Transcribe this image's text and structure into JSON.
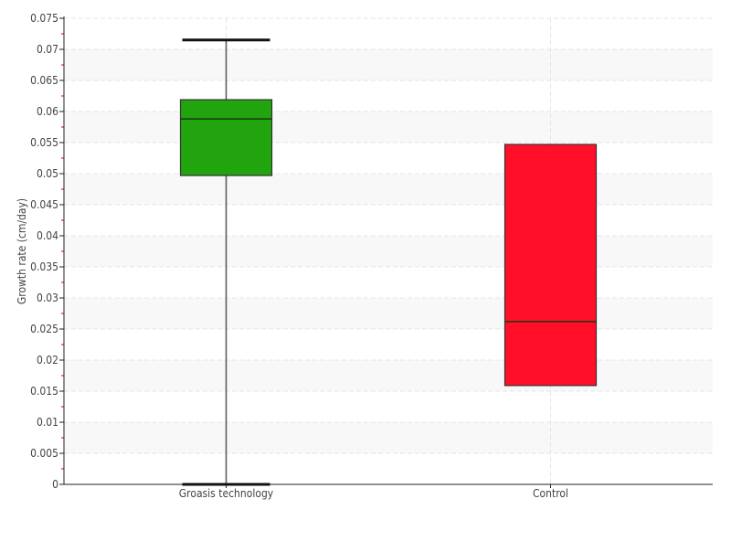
{
  "chart_data": {
    "type": "box",
    "title": "",
    "xlabel": "",
    "ylabel": "Growth rate (cm/day)",
    "ylim": [
      0,
      0.075
    ],
    "yticks": [
      "0",
      "0.005",
      "0.01",
      "0.015",
      "0.02",
      "0.025",
      "0.03",
      "0.035",
      "0.04",
      "0.045",
      "0.05",
      "0.055",
      "0.06",
      "0.065",
      "0.07",
      "0.075"
    ],
    "grid": true,
    "categories": [
      "Groasis technology",
      "Control"
    ],
    "boxes": [
      {
        "category": "Groasis technology",
        "min": 0.0,
        "q1": 0.0497,
        "median": 0.0588,
        "q3": 0.0619,
        "max": 0.0715,
        "color": "#22a40e"
      },
      {
        "category": "Control",
        "min": 0.0159,
        "q1": 0.0159,
        "median": 0.0262,
        "q3": 0.0547,
        "max": 0.0547,
        "color": "#ff0f28"
      }
    ]
  }
}
